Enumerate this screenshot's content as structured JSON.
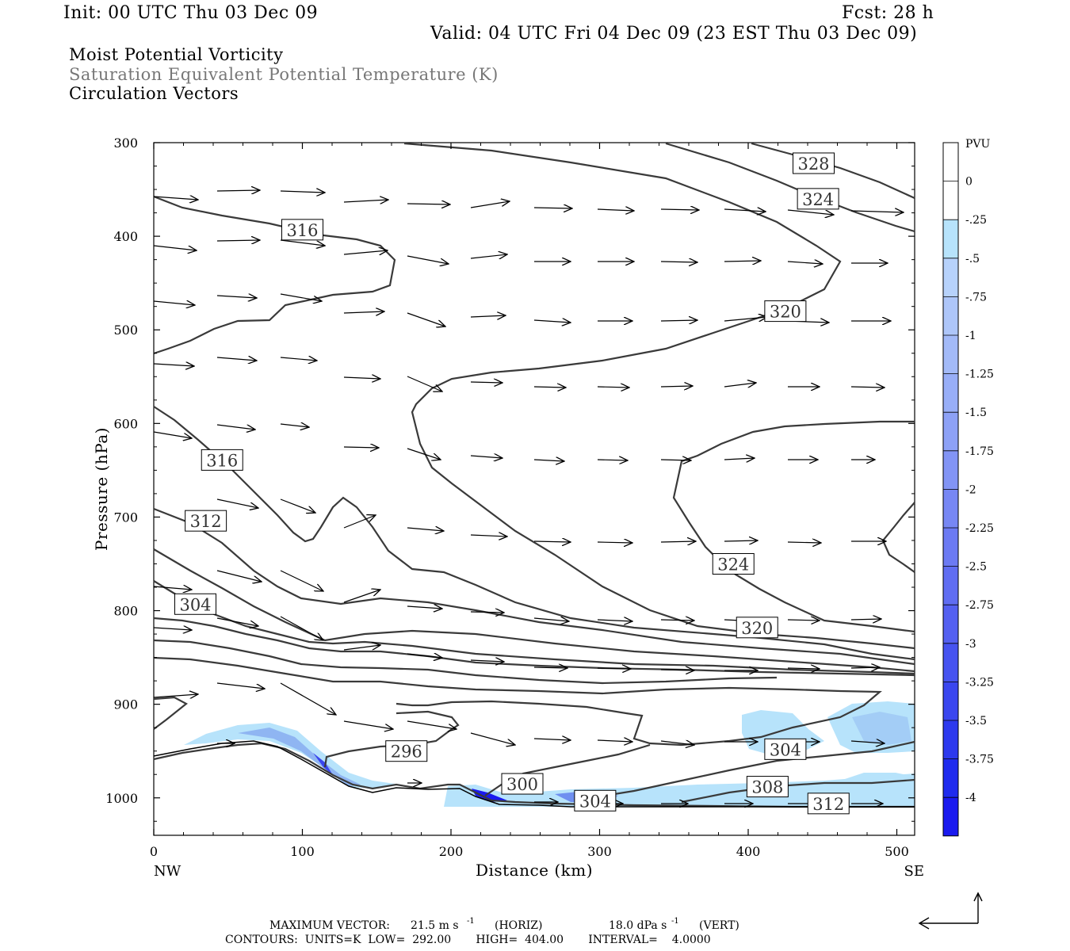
{
  "header": {
    "init": "Init: 00 UTC Thu 03 Dec 09",
    "fcst": "Fcst:   28 h",
    "valid": "Valid: 04 UTC Fri 04 Dec 09 (23 EST Thu 03 Dec 09)",
    "fields": [
      "Moist Potential Vorticity",
      "Saturation Equivalent Potential Temperature (K)",
      "Circulation Vectors"
    ]
  },
  "footer": {
    "max_vector_label": "MAXIMUM VECTOR:",
    "max_vector_horiz": "21.5 m s",
    "horiz_tag": "(HORIZ)",
    "max_vector_vert": "18.0 dPa s",
    "vert_tag": "(VERT)",
    "contours": "CONTOURS:  UNITS=K  LOW=  292.00       HIGH=  404.00       INTERVAL=    4.0000"
  },
  "colors": {
    "contour": "#3a3a3a",
    "pv_light": "#b7e3fb",
    "pv_mid": "#8fb5f2",
    "pv_dark": "#1a1aef"
  },
  "chart_data": {
    "type": "cross-section",
    "xlabel": "Distance (km)",
    "ylabel": "Pressure (hPa)",
    "xlim": [
      0,
      512
    ],
    "ylim": [
      1040,
      300
    ],
    "x_ticks": [
      0,
      100,
      200,
      300,
      400,
      500
    ],
    "y_ticks": [
      300,
      400,
      500,
      600,
      700,
      800,
      900,
      1000
    ],
    "x_end_labels": [
      "NW",
      "SE"
    ],
    "theta_e_contour_labels": [
      {
        "value": "328",
        "x": 444,
        "p": 322
      },
      {
        "value": "324",
        "x": 447,
        "p": 360
      },
      {
        "value": "316",
        "x": 100,
        "p": 393
      },
      {
        "value": "320",
        "x": 425,
        "p": 480
      },
      {
        "value": "316",
        "x": 46,
        "p": 639
      },
      {
        "value": "312",
        "x": 35,
        "p": 704
      },
      {
        "value": "324",
        "x": 390,
        "p": 750
      },
      {
        "value": "304",
        "x": 28,
        "p": 793
      },
      {
        "value": "320",
        "x": 406,
        "p": 818
      },
      {
        "value": "296",
        "x": 170,
        "p": 950
      },
      {
        "value": "304",
        "x": 425,
        "p": 948
      },
      {
        "value": "300",
        "x": 248,
        "p": 985
      },
      {
        "value": "308",
        "x": 413,
        "p": 988
      },
      {
        "value": "304",
        "x": 297,
        "p": 1003
      },
      {
        "value": "312",
        "x": 454,
        "p": 1006
      }
    ],
    "colorbar": {
      "units": "PVU",
      "labels": [
        "0",
        "-.25",
        "-.5",
        "-.75",
        "-1",
        "-1.25",
        "-1.5",
        "-1.75",
        "-2",
        "-2.25",
        "-2.5",
        "-2.75",
        "-3",
        "-3.25",
        "-3.5",
        "-3.75",
        "-4"
      ]
    },
    "contour_interval_K": 4,
    "contour_low_K": 292,
    "contour_high_K": 404
  }
}
